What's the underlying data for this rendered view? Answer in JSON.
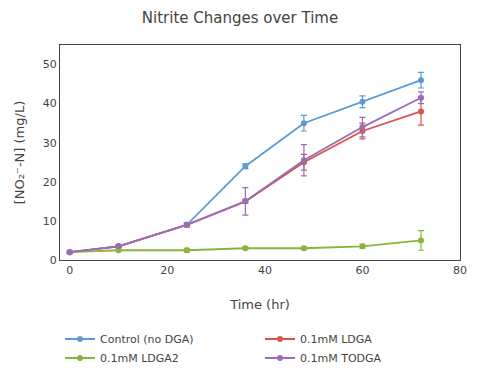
{
  "chart_data": {
    "type": "line",
    "title": "Nitrite Changes over Time",
    "xlabel": "Time (hr)",
    "ylabel": "[NO₂⁻-N] (mg/L)",
    "x": [
      0,
      10,
      24,
      36,
      48,
      60,
      72
    ],
    "xlim": [
      -2,
      80
    ],
    "ylim": [
      0,
      55
    ],
    "xticks": [
      0,
      20,
      40,
      60,
      80
    ],
    "yticks": [
      0,
      10,
      20,
      30,
      40,
      50
    ],
    "grid": false,
    "legend": "bottom",
    "marker": "circle",
    "series": [
      {
        "name": "Control (no DGA)",
        "color": "#5b9bd5",
        "values": [
          2.0,
          3.5,
          9.0,
          24.0,
          35.0,
          40.5,
          46.0
        ],
        "yerr": [
          0.3,
          0.4,
          0.5,
          0.6,
          2.0,
          1.5,
          2.0
        ]
      },
      {
        "name": "0.1mM LDGA",
        "color": "#d9534f",
        "values": [
          2.0,
          3.5,
          9.0,
          15.0,
          25.0,
          33.0,
          38.0
        ],
        "yerr": [
          0.3,
          0.3,
          0.5,
          0.5,
          2.0,
          2.0,
          3.5
        ]
      },
      {
        "name": "0.1mM LDGA2",
        "color": "#8ab53a",
        "values": [
          2.0,
          2.5,
          2.5,
          3.0,
          3.0,
          3.5,
          5.0
        ],
        "yerr": [
          0.2,
          0.2,
          0.5,
          0.3,
          0.3,
          0.5,
          2.5
        ]
      },
      {
        "name": "0.1mM TODGA",
        "color": "#9b6db5",
        "values": [
          2.0,
          3.5,
          9.0,
          15.0,
          25.5,
          34.0,
          41.5
        ],
        "yerr": [
          0.3,
          0.3,
          0.5,
          3.5,
          4.0,
          2.5,
          1.5
        ]
      }
    ]
  }
}
